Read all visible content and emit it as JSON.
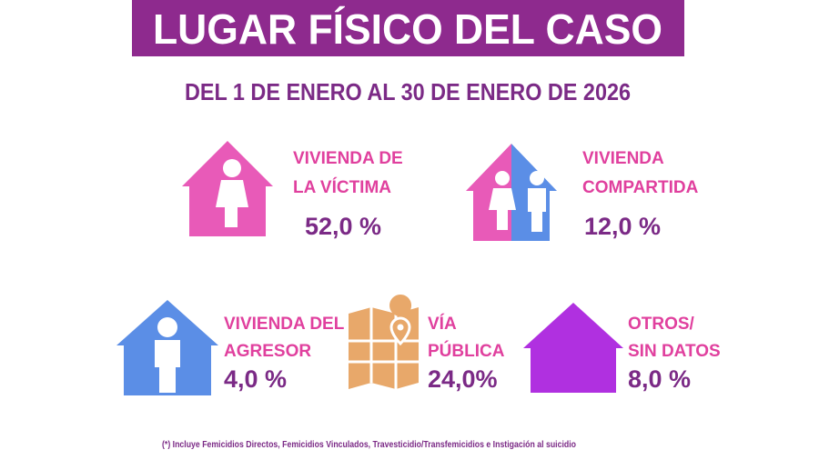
{
  "header": {
    "title": "LUGAR FÍSICO DEL CASO",
    "subtitle": "DEL 1 DE ENERO AL 30 DE ENERO DE 2026"
  },
  "items": [
    {
      "label": [
        "VIVIENDA DE",
        "LA VÍCTIMA"
      ],
      "value": "52,0 %"
    },
    {
      "label": [
        "VIVIENDA",
        "COMPARTIDA"
      ],
      "value": "12,0 %"
    },
    {
      "label": [
        "VIVIENDA DEL",
        "AGRESOR"
      ],
      "value": "4,0 %"
    },
    {
      "label": [
        "VÍA",
        "PÚBLICA"
      ],
      "value": "24,0%"
    },
    {
      "label": [
        "OTROS/",
        "SIN DATOS"
      ],
      "value": "8,0 %"
    }
  ],
  "footnote": "(*) Incluye Femicidios Directos, Femicidios Vinculados,  Travesticidio/Transfemicidios e Instigación al suicidio"
}
